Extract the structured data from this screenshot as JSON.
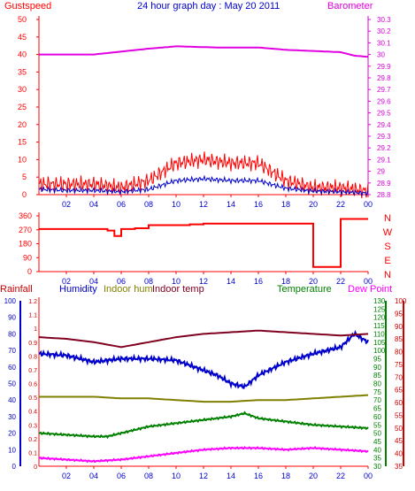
{
  "title": "24 hour graph day : May 20 2011",
  "hour_labels": [
    "02",
    "04",
    "06",
    "08",
    "10",
    "12",
    "14",
    "16",
    "18",
    "20",
    "22",
    "00"
  ],
  "colors": {
    "gust": "#ff0000",
    "wind": "#0000cc",
    "barometer": "#e000e0",
    "direction": "#ff0000",
    "rain": "#cc0000",
    "humidity": "#0000cc",
    "indoor_hum": "#808000",
    "indoor_temp": "#800020",
    "temperature": "#008000",
    "dew_point": "#ff00ff",
    "axis": "#ff0000"
  },
  "chart_data": [
    {
      "type": "line",
      "labels": {
        "left": "Gustspeed",
        "right": "Barometer"
      },
      "left_axis": {
        "ylim": [
          0,
          50
        ],
        "ticks": [
          0,
          5,
          10,
          15,
          20,
          25,
          30,
          35,
          40,
          45,
          50
        ]
      },
      "right_axis": {
        "ylim": [
          28.8,
          30.3
        ],
        "ticks": [
          "28.8",
          "28.9",
          "29",
          "29.1",
          "29.2",
          "29.3",
          "29.4",
          "29.5",
          "29.6",
          "29.7",
          "29.8",
          "29.9",
          "30",
          "30.1",
          "30.2",
          "30.3"
        ]
      },
      "series": [
        {
          "axis": "right",
          "hours": [
            0,
            4,
            8,
            10,
            13,
            16,
            18,
            20,
            22,
            23,
            24
          ],
          "values": [
            30.0,
            30.0,
            30.05,
            30.07,
            30.06,
            30.06,
            30.04,
            30.03,
            30.02,
            29.99,
            29.98
          ]
        },
        {
          "axis": "left",
          "hours": [
            0,
            2,
            4,
            6,
            8,
            10,
            12,
            14,
            16,
            18,
            20,
            22,
            24
          ],
          "values": [
            3,
            3,
            3,
            2,
            4,
            9,
            10,
            9,
            9,
            4,
            2,
            2,
            1
          ]
        },
        {
          "axis": "left",
          "hours": [
            0,
            2,
            4,
            6,
            8,
            10,
            12,
            14,
            16,
            18,
            20,
            22,
            24
          ],
          "values": [
            1.5,
            1.2,
            1.2,
            0.8,
            1.5,
            4,
            4.5,
            4,
            4,
            1.8,
            1,
            0.8,
            0.4
          ]
        }
      ]
    },
    {
      "type": "line",
      "labels": {
        "compass": [
          "N",
          "W",
          "S",
          "E",
          "N"
        ]
      },
      "left_axis": {
        "ylim": [
          0,
          360
        ],
        "ticks": [
          0,
          90,
          180,
          270,
          360
        ]
      },
      "series": [
        {
          "axis": "left",
          "hours": [
            0,
            4,
            5,
            5.5,
            6,
            7,
            8,
            10,
            11,
            12,
            14,
            16,
            18,
            20,
            22,
            24
          ],
          "values": [
            275,
            275,
            265,
            230,
            275,
            280,
            300,
            300,
            305,
            310,
            310,
            310,
            310,
            30,
            340,
            340
          ]
        }
      ]
    },
    {
      "type": "line",
      "labels": {
        "rain": "Rainfall",
        "humidity": "Humidity",
        "indoor_hum": "Indoor hum",
        "indoor_temp": "Indoor temp",
        "temperature": "Temperature",
        "dew_point": "Dew Point"
      },
      "rain_axis": {
        "ylim": [
          0,
          1.2
        ],
        "ticks": [
          "0",
          "0.1",
          "0.2",
          "0.3",
          "0.4",
          "0.5",
          "0.6",
          "0.7",
          "0.8",
          "0.9",
          "1",
          "1.1",
          "1.2"
        ]
      },
      "hum_axis": {
        "ylim": [
          0,
          100
        ],
        "ticks": [
          0,
          10,
          20,
          30,
          40,
          50,
          60,
          70,
          80,
          90,
          100
        ]
      },
      "temp_axis": {
        "ylim": [
          30,
          130
        ],
        "ticks": [
          30,
          35,
          40,
          45,
          50,
          55,
          60,
          65,
          70,
          75,
          80,
          85,
          90,
          95,
          100,
          105,
          110,
          115,
          120,
          125,
          130
        ]
      },
      "dew_axis": {
        "ylim": [
          35,
          100
        ],
        "ticks": [
          35,
          40,
          45,
          50,
          55,
          60,
          65,
          70,
          75,
          80,
          85,
          90,
          95,
          100
        ]
      },
      "series": [
        {
          "name": "Humidity",
          "axis": "hum",
          "hours": [
            0,
            2,
            4,
            6,
            8,
            10,
            12,
            13,
            14,
            15,
            16,
            18,
            20,
            21,
            22,
            23,
            24
          ],
          "values": [
            68,
            67,
            63,
            65,
            65,
            64,
            58,
            55,
            50,
            48,
            55,
            63,
            68,
            70,
            72,
            80,
            75
          ]
        },
        {
          "name": "Indoor temp",
          "axis": "temp",
          "hours": [
            0,
            2,
            4,
            6,
            8,
            10,
            12,
            14,
            16,
            18,
            20,
            22,
            24
          ],
          "values": [
            108,
            107,
            105,
            102,
            105,
            108,
            110,
            111,
            112,
            111,
            110,
            109,
            110
          ]
        },
        {
          "name": "Indoor hum",
          "axis": "hum",
          "hours": [
            0,
            4,
            6,
            8,
            10,
            12,
            14,
            16,
            18,
            20,
            22,
            24
          ],
          "values": [
            42,
            42,
            41,
            41,
            40,
            39,
            39,
            40,
            40,
            41,
            42,
            43
          ]
        },
        {
          "name": "Temperature",
          "axis": "temp",
          "hours": [
            0,
            2,
            4,
            5,
            6,
            8,
            10,
            12,
            14,
            15,
            16,
            18,
            20,
            22,
            24
          ],
          "values": [
            50,
            49,
            48,
            48,
            50,
            54,
            56,
            58,
            60,
            62,
            59,
            57,
            55,
            54,
            53
          ]
        },
        {
          "name": "Dew Point",
          "axis": "temp",
          "hours": [
            0,
            2,
            4,
            6,
            8,
            10,
            12,
            14,
            16,
            18,
            20,
            22,
            24
          ],
          "values": [
            35,
            34,
            33,
            34,
            36,
            38,
            40,
            41,
            41,
            40,
            41,
            40,
            39
          ]
        }
      ]
    }
  ]
}
